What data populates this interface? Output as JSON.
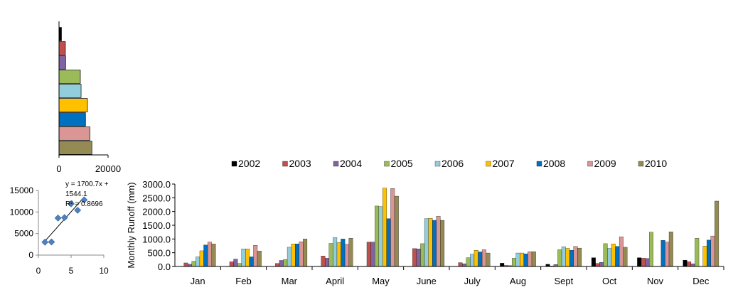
{
  "chart_data": [
    {
      "type": "bar",
      "orientation": "horizontal",
      "values": [
        1000,
        2600,
        2700,
        8700,
        9000,
        11600,
        10800,
        12600,
        13400
      ],
      "colors": [
        "#000000",
        "#C0504D",
        "#8064A2",
        "#9BBB59",
        "#92CDDC",
        "#FFC000",
        "#0070C0",
        "#D99694",
        "#948A54"
      ],
      "xlim": [
        0,
        20000
      ],
      "xticks": [
        0,
        20000
      ],
      "xtick_labels": [
        "0",
        "20000"
      ]
    },
    {
      "type": "scatter",
      "points": [
        {
          "x": 1,
          "y": 3000
        },
        {
          "x": 2,
          "y": 3050
        },
        {
          "x": 3,
          "y": 8600
        },
        {
          "x": 4,
          "y": 8700
        },
        {
          "x": 5,
          "y": 11900
        },
        {
          "x": 6,
          "y": 10400
        },
        {
          "x": 7,
          "y": 12800
        }
      ],
      "trendline": {
        "slope": 1700.7,
        "intercept": 1544.1,
        "x_range": [
          1,
          7
        ]
      },
      "equation_lines": [
        "y = 1700.7x +",
        "1544.1",
        "R² = 0.8696"
      ],
      "xlim": [
        0,
        10
      ],
      "ylim": [
        0,
        15000
      ],
      "xticks": [
        0,
        5,
        10
      ],
      "yticks": [
        0,
        5000,
        10000,
        15000
      ],
      "xtick_labels": [
        "0",
        "5",
        "10"
      ],
      "ytick_labels": [
        "0",
        "5000",
        "10000",
        "15000"
      ]
    },
    {
      "type": "bar",
      "ylabel": "Monthly  Runoff (mm)",
      "legend_position": "top",
      "ylim": [
        0,
        3000
      ],
      "yticks": [
        0,
        500,
        1000,
        1500,
        2000,
        2500,
        3000
      ],
      "ytick_labels": [
        "0.0",
        "500.0",
        "1000.0",
        "1500.0",
        "2000.0",
        "2500.0",
        "3000.0"
      ],
      "categories": [
        "Jan",
        "Feb",
        "Mar",
        "April",
        "May",
        "June",
        "July",
        "Aug",
        "Sept",
        "Oct",
        "Nov",
        "Dec"
      ],
      "series": [
        {
          "name": "2002",
          "color": "#000000",
          "values": [
            10,
            10,
            10,
            10,
            10,
            10,
            10,
            120,
            80,
            320,
            320,
            230
          ]
        },
        {
          "name": "2003",
          "color": "#C0504D",
          "values": [
            130,
            170,
            110,
            380,
            890,
            650,
            140,
            40,
            20,
            110,
            300,
            170
          ]
        },
        {
          "name": "2004",
          "color": "#8064A2",
          "values": [
            80,
            270,
            220,
            300,
            890,
            640,
            100,
            30,
            70,
            150,
            290,
            100
          ]
        },
        {
          "name": "2005",
          "color": "#9BBB59",
          "values": [
            190,
            110,
            250,
            840,
            2200,
            830,
            320,
            300,
            610,
            830,
            1250,
            1030
          ]
        },
        {
          "name": "2006",
          "color": "#92CDDC",
          "values": [
            350,
            640,
            700,
            1050,
            2180,
            1740,
            450,
            490,
            720,
            660,
            10,
            10
          ]
        },
        {
          "name": "2007",
          "color": "#FFC000",
          "values": [
            570,
            640,
            820,
            870,
            2850,
            1750,
            590,
            490,
            660,
            820,
            10,
            740
          ]
        },
        {
          "name": "2008",
          "color": "#0070C0",
          "values": [
            780,
            350,
            820,
            1000,
            1740,
            1680,
            530,
            460,
            590,
            730,
            950,
            960
          ]
        },
        {
          "name": "2009",
          "color": "#D99694",
          "values": [
            890,
            770,
            900,
            810,
            2840,
            1830,
            610,
            540,
            730,
            1080,
            890,
            1110
          ]
        },
        {
          "name": "2010",
          "color": "#948A54",
          "values": [
            820,
            560,
            1000,
            1030,
            2560,
            1680,
            490,
            540,
            670,
            700,
            1260,
            2380
          ]
        }
      ]
    }
  ]
}
